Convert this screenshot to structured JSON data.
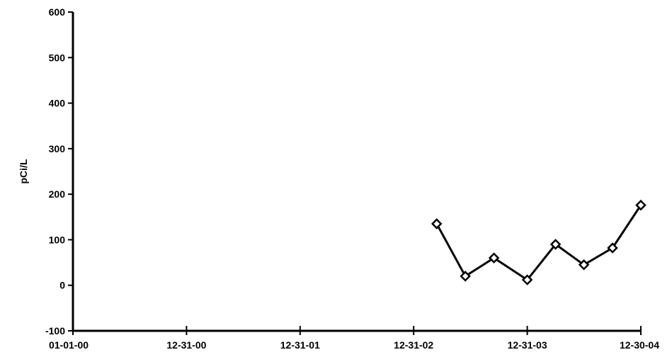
{
  "chart_data": {
    "type": "line",
    "title": "",
    "xlabel": "",
    "ylabel": "pCi/L",
    "x_tick_labels": [
      "01-01-00",
      "12-31-00",
      "12-31-01",
      "12-31-02",
      "12-31-03",
      "12-30-04"
    ],
    "x_tick_dates": [
      "2000-01-01",
      "2000-12-31",
      "2001-12-31",
      "2002-12-31",
      "2003-12-31",
      "2004-12-30"
    ],
    "y_tick_labels": [
      "-100",
      "0",
      "100",
      "200",
      "300",
      "400",
      "500",
      "600"
    ],
    "ylim": [
      -100,
      600
    ],
    "xlim": [
      "2000-01-01",
      "2004-12-30"
    ],
    "grid": false,
    "legend": "none",
    "series": [
      {
        "x": [
          "2003-03-15",
          "2003-06-15",
          "2003-09-15",
          "2003-12-31",
          "2004-03-31",
          "2004-06-30",
          "2004-09-30",
          "2004-12-30"
        ],
        "values": [
          135,
          20,
          60,
          12,
          90,
          45,
          82,
          176
        ]
      }
    ],
    "line_color": "#000000",
    "marker": "diamond-open"
  }
}
